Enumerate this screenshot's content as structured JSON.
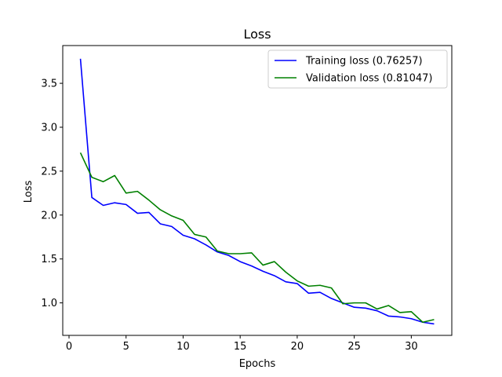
{
  "chart_data": {
    "type": "line",
    "title": "Loss",
    "xlabel": "Epochs",
    "ylabel": "Loss",
    "xlim": [
      -0.55,
      33.55
    ],
    "ylim": [
      0.63,
      3.93
    ],
    "xticks": [
      0,
      5,
      10,
      15,
      20,
      25,
      30
    ],
    "yticks": [
      1.0,
      1.5,
      2.0,
      2.5,
      3.0,
      3.5
    ],
    "xtick_labels": [
      "0",
      "5",
      "10",
      "15",
      "20",
      "25",
      "30"
    ],
    "ytick_labels": [
      "1.0",
      "1.5",
      "2.0",
      "2.5",
      "3.0",
      "3.5"
    ],
    "grid": false,
    "legend_position": "top-right",
    "x": [
      1,
      2,
      3,
      4,
      5,
      6,
      7,
      8,
      9,
      10,
      11,
      12,
      13,
      14,
      15,
      16,
      17,
      18,
      19,
      20,
      21,
      22,
      23,
      24,
      25,
      26,
      27,
      28,
      29,
      30,
      31,
      32
    ],
    "series": [
      {
        "name": "Training loss (0.76257)",
        "color": "#0000ff",
        "values": [
          3.78,
          2.2,
          2.11,
          2.14,
          2.12,
          2.02,
          2.03,
          1.9,
          1.87,
          1.77,
          1.73,
          1.66,
          1.58,
          1.54,
          1.47,
          1.42,
          1.36,
          1.31,
          1.24,
          1.22,
          1.11,
          1.12,
          1.05,
          1.0,
          0.95,
          0.94,
          0.91,
          0.85,
          0.84,
          0.82,
          0.78,
          0.76
        ]
      },
      {
        "name": "Validation loss (0.81047)",
        "color": "#008000",
        "values": [
          2.71,
          2.43,
          2.38,
          2.45,
          2.25,
          2.27,
          2.17,
          2.06,
          1.99,
          1.94,
          1.78,
          1.75,
          1.59,
          1.56,
          1.56,
          1.57,
          1.43,
          1.47,
          1.35,
          1.25,
          1.19,
          1.2,
          1.17,
          0.99,
          1.0,
          1.0,
          0.93,
          0.97,
          0.89,
          0.9,
          0.78,
          0.81
        ]
      }
    ]
  }
}
